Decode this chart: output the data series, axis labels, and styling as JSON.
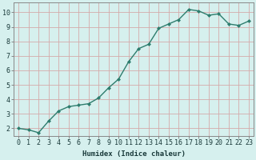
{
  "x": [
    0,
    1,
    2,
    3,
    4,
    5,
    6,
    7,
    8,
    9,
    10,
    11,
    12,
    13,
    14,
    15,
    16,
    17,
    18,
    19,
    20,
    21,
    22,
    23
  ],
  "y": [
    2.0,
    1.9,
    1.7,
    2.5,
    3.2,
    3.5,
    3.6,
    3.7,
    4.1,
    4.8,
    5.4,
    6.6,
    7.5,
    7.8,
    8.9,
    9.2,
    9.5,
    10.2,
    10.1,
    9.8,
    9.9,
    9.2,
    9.1,
    9.4
  ],
  "line_color": "#2e7d6e",
  "marker": "D",
  "marker_size": 2.0,
  "bg_color": "#d6f0ee",
  "grid_color": "#d4aaaa",
  "xlabel": "Humidex (Indice chaleur)",
  "xlim": [
    -0.5,
    23.5
  ],
  "ylim": [
    1.5,
    10.7
  ],
  "yticks": [
    2,
    3,
    4,
    5,
    6,
    7,
    8,
    9,
    10
  ],
  "xticks": [
    0,
    1,
    2,
    3,
    4,
    5,
    6,
    7,
    8,
    9,
    10,
    11,
    12,
    13,
    14,
    15,
    16,
    17,
    18,
    19,
    20,
    21,
    22,
    23
  ],
  "xlabel_fontsize": 6.5,
  "tick_fontsize": 6.0,
  "label_color": "#1a3a3a",
  "linewidth": 1.0,
  "spine_color": "#888888"
}
